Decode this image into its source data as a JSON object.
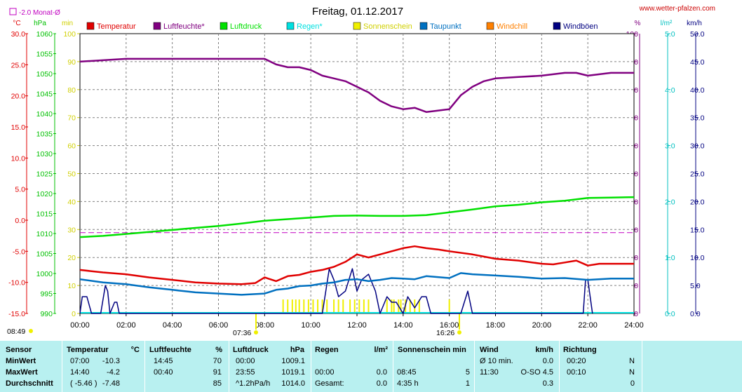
{
  "page": {
    "title": "Freitag, 01.12.2017",
    "site": "www.wetter-pfalzen.com",
    "month_avg_label": "-2.0 Monat-Ø"
  },
  "axes": {
    "temp_unit": "°C",
    "pressure_unit": "hPa",
    "min_unit": "min",
    "pct_unit": "%",
    "rain_unit": "l/m²",
    "wind_unit": "km/h",
    "temp_ticks": [
      "30.0",
      "25.0",
      "20.0",
      "15.0",
      "10.0",
      "5.0",
      "0.0",
      "-5.0",
      "-10.0",
      "-15.0"
    ],
    "pressure_ticks": [
      "1060",
      "1055",
      "1050",
      "1045",
      "1040",
      "1035",
      "1030",
      "1025",
      "1020",
      "1015",
      "1010",
      "1005",
      "1000",
      "995",
      "990"
    ],
    "min_ticks": [
      "100",
      "90",
      "80",
      "70",
      "60",
      "50",
      "40",
      "30",
      "20",
      "10",
      "0"
    ],
    "pct_ticks": [
      "100",
      "90",
      "80",
      "70",
      "60",
      "50",
      "40",
      "30",
      "20",
      "10",
      "0"
    ],
    "rain_ticks": [
      "5.0",
      "4.0",
      "3.0",
      "2.0",
      "1.0",
      "0.0"
    ],
    "wind_ticks": [
      "50.0",
      "45.0",
      "40.0",
      "35.0",
      "30.0",
      "25.0",
      "20.0",
      "15.0",
      "10.0",
      "5.0",
      "0.0"
    ],
    "time_ticks": [
      "00:00",
      "02:00",
      "04:00",
      "06:00",
      "08:00",
      "10:00",
      "12:00",
      "14:00",
      "16:00",
      "18:00",
      "20:00",
      "22:00",
      "24:00"
    ],
    "sunrise": "08:49",
    "sun_start": "07:36",
    "sun_end": "16:26"
  },
  "legend": [
    {
      "label": "Temperatur",
      "color": "#e00000"
    },
    {
      "label": "Luftfeuchte*",
      "color": "#800080"
    },
    {
      "label": "Luftdruck",
      "color": "#00e000"
    },
    {
      "label": "Regen*",
      "color": "#00e0e0"
    },
    {
      "label": "Sonnenschein",
      "color": "#f0f000"
    },
    {
      "label": "Taupunkt",
      "color": "#0070c0"
    },
    {
      "label": "Windchill",
      "color": "#ff8000"
    },
    {
      "label": "Windböen",
      "color": "#000080"
    }
  ],
  "chart_data": {
    "type": "line",
    "title": "Freitag, 01.12.2017",
    "x_unit": "hours",
    "xlim": [
      0,
      24
    ],
    "series": [
      {
        "name": "Temperatur",
        "unit": "°C",
        "color": "#e00000",
        "ylim": [
          -15,
          30
        ],
        "x": [
          0,
          1,
          2,
          3,
          4,
          5,
          6,
          7,
          7.6,
          8,
          8.5,
          9,
          9.5,
          10,
          10.5,
          11,
          11.5,
          12,
          12.5,
          13,
          13.5,
          14,
          14.5,
          15,
          15.5,
          16,
          17,
          18,
          19,
          20,
          20.5,
          21,
          21.5,
          22,
          22.5,
          23,
          24
        ],
        "y": [
          -8.0,
          -8.4,
          -8.7,
          -9.2,
          -9.6,
          -10.0,
          -10.2,
          -10.3,
          -10.1,
          -9.2,
          -9.8,
          -9.0,
          -8.8,
          -8.3,
          -8.0,
          -7.5,
          -6.7,
          -5.5,
          -6.0,
          -5.5,
          -5.0,
          -4.5,
          -4.2,
          -4.5,
          -4.7,
          -5.0,
          -5.5,
          -6.2,
          -6.5,
          -7.0,
          -7.1,
          -6.8,
          -6.5,
          -7.3,
          -7.0,
          -7.0,
          -7.0
        ]
      },
      {
        "name": "Luftfeuchte*",
        "unit": "%",
        "color": "#800080",
        "ylim": [
          0,
          100
        ],
        "x": [
          0,
          1,
          2,
          3,
          4,
          5,
          6,
          7,
          8,
          8.5,
          9,
          9.5,
          10,
          10.5,
          11,
          11.5,
          12,
          12.5,
          13,
          13.5,
          14,
          14.5,
          15,
          15.5,
          16,
          16.5,
          17,
          17.5,
          18,
          19,
          20,
          21,
          21.5,
          22,
          23,
          24
        ],
        "y": [
          90,
          90.5,
          91,
          91,
          91,
          91,
          91,
          91,
          91,
          89,
          88,
          88,
          87,
          85,
          84,
          83,
          81,
          79,
          76,
          74,
          73,
          73.5,
          72,
          72.5,
          73,
          78,
          81,
          83,
          84,
          84.5,
          85,
          86,
          86,
          85,
          86,
          86
        ]
      },
      {
        "name": "Luftdruck",
        "unit": "hPa",
        "color": "#00e000",
        "ylim": [
          990,
          1060
        ],
        "x": [
          0,
          1,
          2,
          3,
          4,
          5,
          6,
          7,
          8,
          9,
          10,
          11,
          12,
          13,
          14,
          15,
          16,
          17,
          18,
          19,
          20,
          21,
          22,
          23,
          24
        ],
        "y": [
          1009.1,
          1009.4,
          1009.9,
          1010.4,
          1010.9,
          1011.4,
          1011.9,
          1012.5,
          1013.2,
          1013.6,
          1014.0,
          1014.4,
          1014.5,
          1014.4,
          1014.4,
          1014.6,
          1015.3,
          1016.0,
          1016.8,
          1017.2,
          1017.8,
          1018.2,
          1018.9,
          1019.0,
          1019.1
        ]
      },
      {
        "name": "Taupunkt",
        "unit": "°C",
        "color": "#0070c0",
        "ylim": [
          -15,
          30
        ],
        "x": [
          0,
          1,
          2,
          3,
          4,
          5,
          6,
          7,
          8,
          8.5,
          9,
          9.5,
          10,
          10.5,
          11,
          11.5,
          12,
          12.5,
          13,
          13.5,
          14,
          14.5,
          15,
          16,
          16.5,
          17,
          18,
          19,
          20,
          21,
          22,
          23,
          24
        ],
        "y": [
          -9.5,
          -10.0,
          -10.3,
          -10.8,
          -11.2,
          -11.6,
          -11.8,
          -12.0,
          -11.8,
          -11.2,
          -11.0,
          -10.6,
          -10.5,
          -10.2,
          -10.0,
          -9.6,
          -9.5,
          -9.8,
          -9.6,
          -9.3,
          -9.4,
          -9.5,
          -9.0,
          -9.3,
          -8.5,
          -8.7,
          -8.9,
          -9.1,
          -9.4,
          -9.3,
          -9.6,
          -9.4,
          -9.4
        ]
      },
      {
        "name": "Windböen",
        "unit": "km/h",
        "color": "#000080",
        "ylim": [
          0,
          50
        ],
        "x": [
          0,
          0.1,
          0.3,
          0.5,
          0.9,
          1.1,
          1.2,
          1.3,
          1.5,
          1.6,
          1.7,
          10.5,
          10.8,
          11.0,
          11.2,
          11.5,
          11.8,
          12.0,
          12.2,
          12.5,
          12.8,
          13.0,
          13.3,
          13.5,
          13.7,
          14.0,
          14.2,
          14.5,
          14.8,
          15.0,
          15.2,
          16.5,
          16.8,
          17.0,
          21.8,
          21.9,
          22.0,
          22.2
        ],
        "y": [
          0,
          3,
          3,
          0,
          0,
          5,
          4,
          0,
          2,
          2,
          0,
          0,
          8,
          6,
          3,
          4,
          8,
          4,
          6,
          7,
          4,
          0,
          3,
          2,
          2,
          0,
          3,
          1,
          3,
          3,
          0,
          0,
          4,
          0,
          0,
          6,
          6,
          0
        ]
      },
      {
        "name": "Sonnenschein",
        "unit": "min",
        "color": "#f0f000",
        "ylim": [
          0,
          100
        ],
        "bars_x": [
          8.8,
          9.0,
          9.2,
          9.35,
          9.5,
          9.7,
          9.9,
          10.1,
          10.3,
          10.5,
          10.7,
          11.0,
          11.2,
          11.4,
          11.7,
          11.9,
          12.1,
          12.3,
          12.5,
          13.3,
          13.5,
          13.6,
          13.8,
          13.9,
          14.1,
          14.3,
          14.5,
          14.7,
          16.0
        ],
        "bars_y": [
          5,
          5,
          5,
          5,
          5,
          5,
          5,
          5,
          5,
          5,
          5,
          5,
          5,
          5,
          5,
          5,
          5,
          5,
          5,
          5,
          5,
          5,
          5,
          5,
          5,
          5,
          5,
          5,
          5
        ]
      },
      {
        "name": "Monat-Ø",
        "unit": "°C",
        "color": "#c000c0",
        "value": -2.0
      }
    ]
  },
  "stats": {
    "headers": {
      "sensor": "Sensor",
      "temp": "Temperatur",
      "temp_unit": "°C",
      "hum": "Luftfeuchte",
      "hum_unit": "%",
      "press": "Luftdruck",
      "press_unit": "hPa",
      "rain": "Regen",
      "rain_unit": "l/m²",
      "sun": "Sonnenschein min",
      "wind": "Wind",
      "wind_unit": "km/h",
      "dir": "Richtung"
    },
    "rows": [
      {
        "label": "MinWert",
        "temp_time": "07:00",
        "temp_val": "-10.3",
        "hum_time": "14:45",
        "hum_val": "70",
        "press_time": "00:00",
        "press_val": "1009.1",
        "rain_time": "",
        "rain_val": "",
        "sun_time": "",
        "sun_val": "",
        "wind_time": "Ø 10 min.",
        "wind_val": "0.0",
        "dir_time": "00:20",
        "dir_val": "N"
      },
      {
        "label": "MaxWert",
        "temp_time": "14:40",
        "temp_val": "-4.2",
        "hum_time": "00:40",
        "hum_val": "91",
        "press_time": "23:55",
        "press_val": "1019.1",
        "rain_time": "00:00",
        "rain_val": "0.0",
        "sun_time": "08:45",
        "sun_val": "5",
        "wind_time": "11:30",
        "wind_val": "O-SO 4.5",
        "dir_time": "00:10",
        "dir_val": "N"
      },
      {
        "label": "Durchschnitt",
        "temp_time": "( -5.46 )",
        "temp_val": "-7.48",
        "hum_time": "",
        "hum_val": "85",
        "press_time": "^1.2hPa/h",
        "press_val": "1014.0",
        "rain_time": "Gesamt:",
        "rain_val": "0.0",
        "sun_time": "4:35 h",
        "sun_val": "1",
        "wind_time": "",
        "wind_val": "0.3",
        "dir_time": "",
        "dir_val": "0"
      }
    ]
  }
}
